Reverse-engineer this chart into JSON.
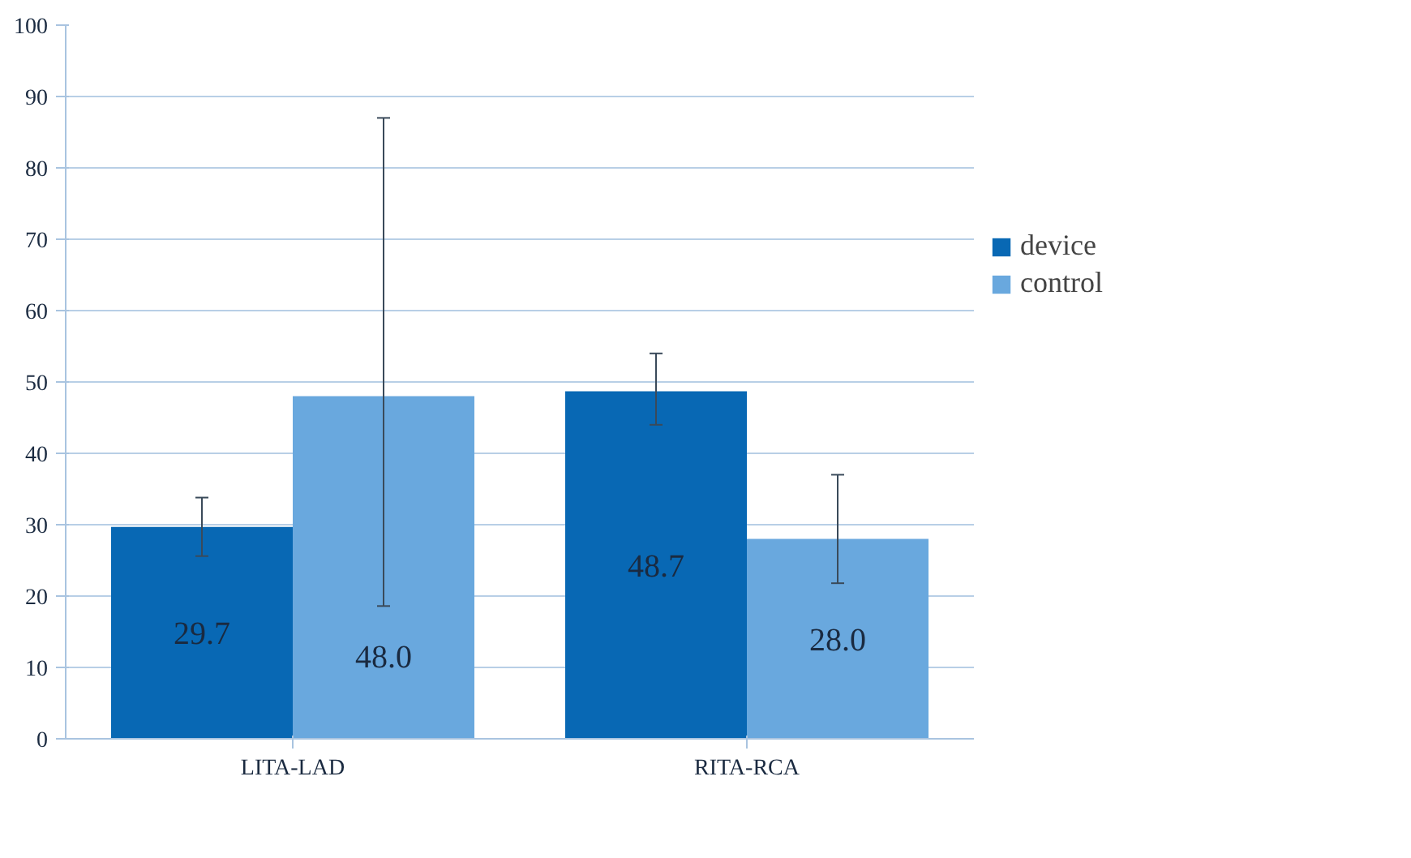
{
  "chart_data": {
    "type": "bar",
    "categories": [
      "LITA-LAD",
      "RITA-RCA"
    ],
    "series": [
      {
        "name": "device",
        "color": "#0868b4",
        "values": [
          29.7,
          48.7
        ],
        "errors": [
          [
            25.6,
            33.8
          ],
          [
            44,
            54
          ]
        ],
        "value_labels": [
          "29.7",
          "48.7"
        ]
      },
      {
        "name": "control",
        "color": "#69a8de",
        "values": [
          48.0,
          28.0
        ],
        "errors": [
          [
            18.6,
            87
          ],
          [
            21.8,
            37
          ]
        ],
        "value_labels": [
          "48.0",
          "28.0"
        ]
      }
    ],
    "ylim": [
      0,
      100
    ],
    "yticks": [
      0,
      10,
      20,
      30,
      40,
      50,
      60,
      70,
      80,
      90,
      100
    ],
    "grid": "y",
    "legend": "right"
  }
}
